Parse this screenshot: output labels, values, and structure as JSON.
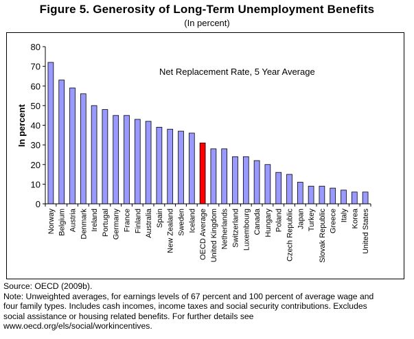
{
  "figure": {
    "title": "Figure 5. Generosity of Long-Term Unemployment Benefits",
    "subtitle": "(In percent)"
  },
  "chart_data": {
    "type": "bar",
    "annotation": "Net Replacement Rate, 5 Year Average",
    "ylabel": "In percent",
    "xlabel": "",
    "ylim": [
      0,
      80
    ],
    "yticks": [
      0,
      10,
      20,
      30,
      40,
      50,
      60,
      70,
      80
    ],
    "grid": false,
    "legend": "none",
    "categories": [
      "Norway",
      "Belgium",
      "Austria",
      "Denmark",
      "Ireland",
      "Portugal",
      "Germany",
      "France",
      "Finland",
      "Australia",
      "Spain",
      "New Zealand",
      "Sweden",
      "Iceland",
      "OECD Average",
      "United Kingdom",
      "Netherlands",
      "Switzerland",
      "Luxembourg",
      "Canada",
      "Hungary",
      "Poland",
      "Czech Republic",
      "Japan",
      "Turkey",
      "Slovak Republic",
      "Greece",
      "Italy",
      "Korea",
      "United States"
    ],
    "values": [
      72,
      63,
      59,
      56,
      50,
      48,
      45,
      45,
      43,
      42,
      39,
      38,
      37,
      36,
      31,
      28,
      28,
      24,
      24,
      22,
      20,
      16,
      15,
      11,
      9,
      9,
      8,
      7,
      6,
      6
    ],
    "highlight": "OECD Average",
    "colors": {
      "bar": "#9999ff",
      "highlight": "#ff0000",
      "outline": "#000000"
    }
  },
  "notes": {
    "source": "Source: OECD (2009b).",
    "lines": [
      "Note:  Unweighted averages, for earnings levels of 67 percent and 100 percent of average wage and",
      "four family types. Includes cash incomes, income taxes and social security contributions. Excludes",
      "social assistance or housing related benefits. For further details see",
      "www.oecd.org/els/social/workincentives."
    ]
  }
}
